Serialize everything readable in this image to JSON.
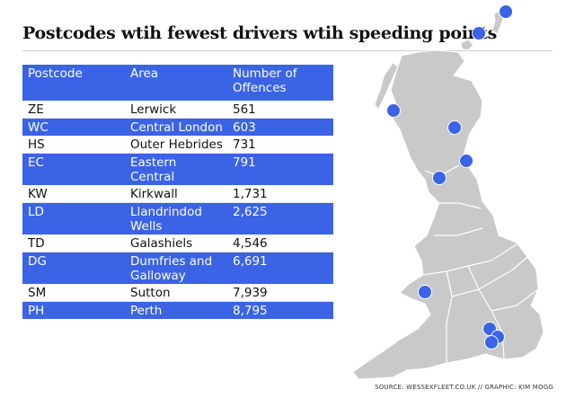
{
  "chart_data": {
    "type": "table",
    "title": "Postcodes wtih fewest drivers wtih speeding points",
    "columns": [
      "Postcode",
      "Area",
      "Number of Offences"
    ],
    "rows": [
      {
        "postcode": "ZE",
        "area": "Lerwick",
        "offences": "561"
      },
      {
        "postcode": "WC",
        "area": "Central London",
        "offences": "603"
      },
      {
        "postcode": "HS",
        "area": "Outer Hebrides",
        "offences": "731"
      },
      {
        "postcode": "EC",
        "area": "Eastern Central",
        "offences": "791"
      },
      {
        "postcode": "KW",
        "area": "Kirkwall",
        "offences": "1,731"
      },
      {
        "postcode": "LD",
        "area": "Llandrindod Wells",
        "offences": "2,625"
      },
      {
        "postcode": "TD",
        "area": "Galashiels",
        "offences": "4,546"
      },
      {
        "postcode": "DG",
        "area": "Dumfries and Galloway",
        "offences": "6,691"
      },
      {
        "postcode": "SM",
        "area": "Sutton",
        "offences": "7,939"
      },
      {
        "postcode": "PH",
        "area": "Perth",
        "offences": "8,795"
      }
    ],
    "source": "SOURCE: WESSEXFLEET.CO.UK // GRAPHIC: KIM MOGG"
  },
  "colors": {
    "accent": "#3b63e6",
    "marker": "#3a63e6",
    "land": "#c9c9c9",
    "boundary": "#ffffff"
  }
}
